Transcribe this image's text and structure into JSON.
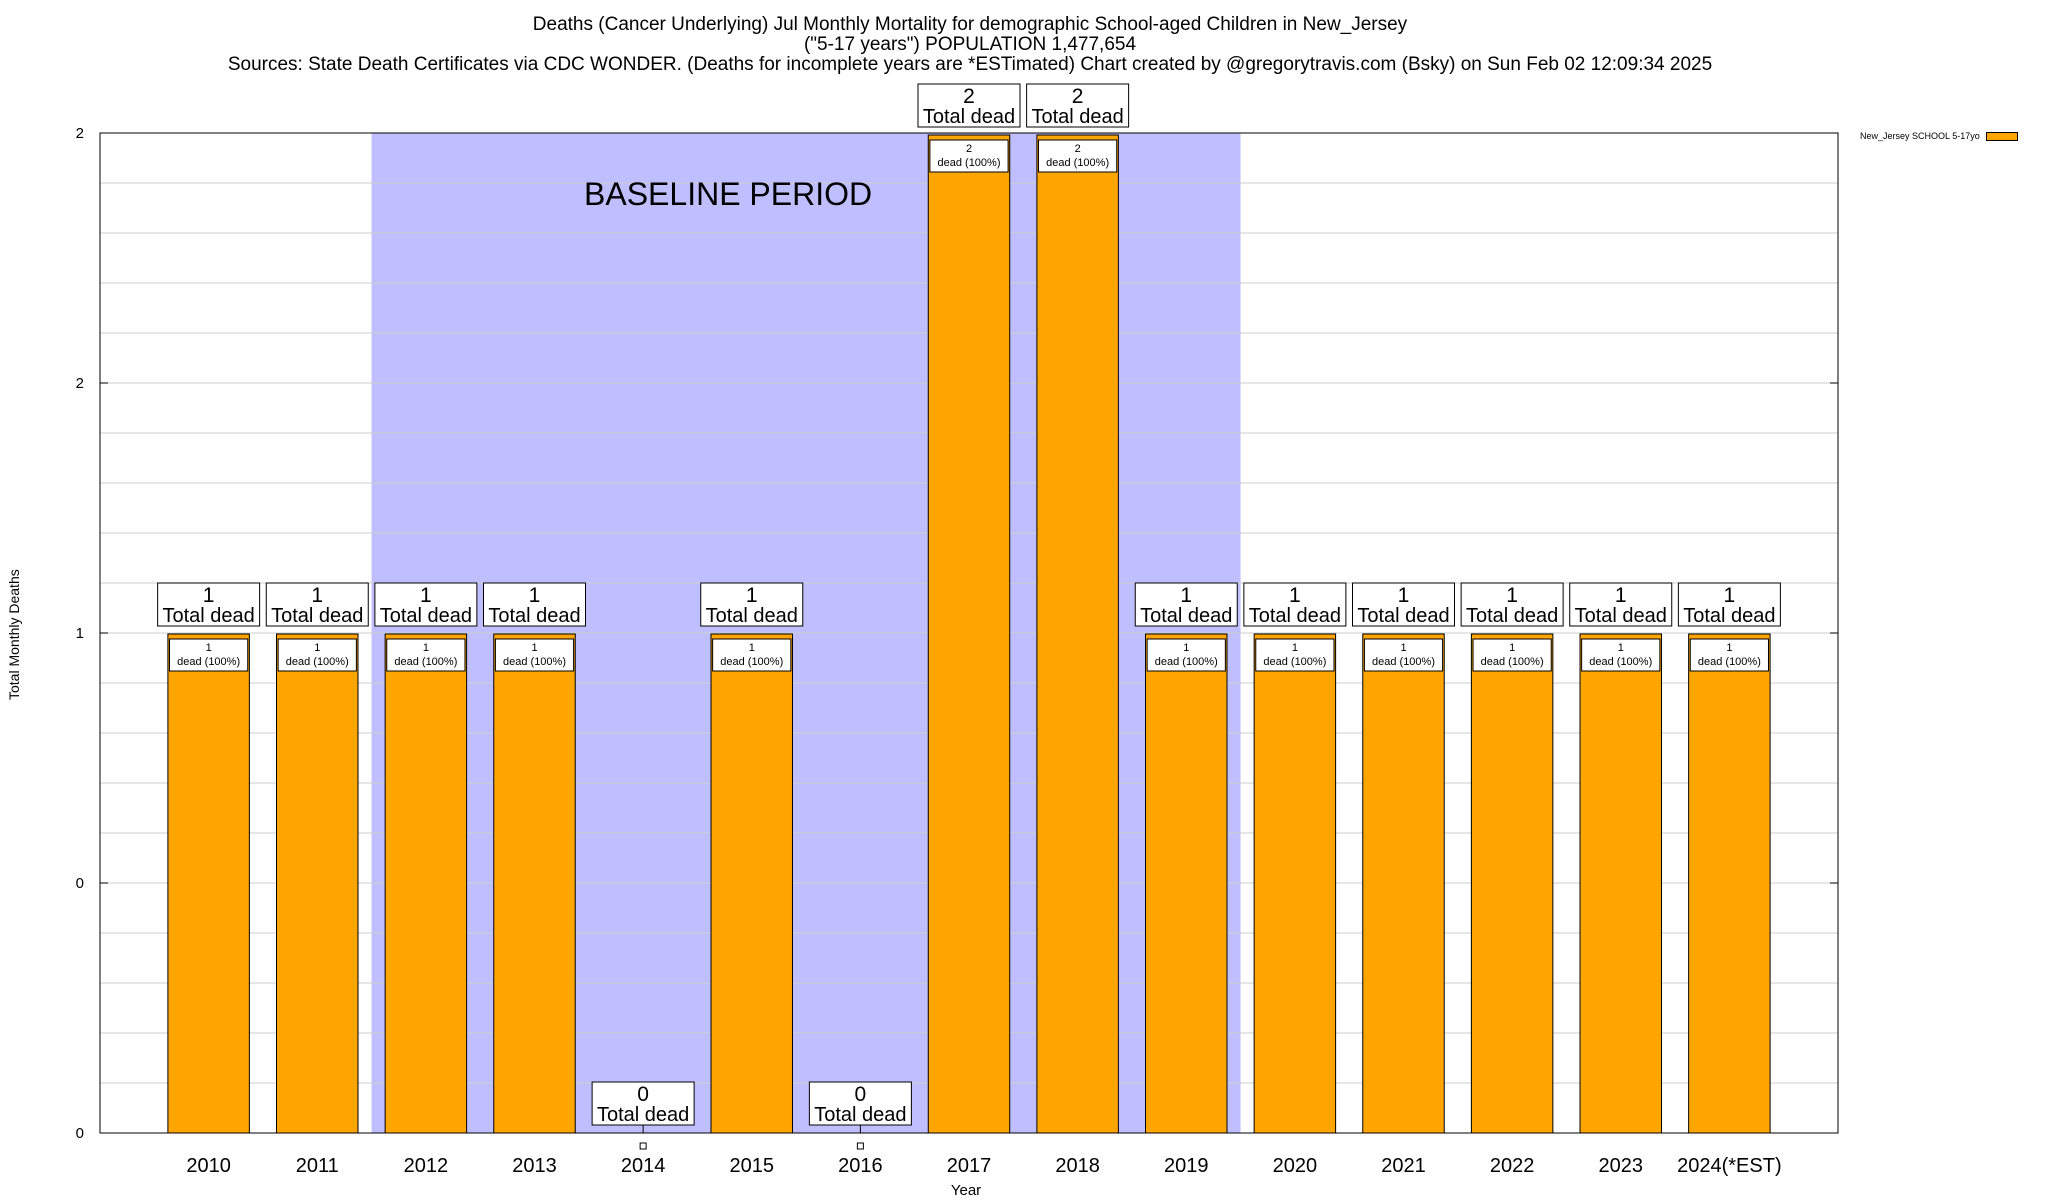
{
  "title": {
    "line1": "Deaths (Cancer Underlying) Jul Monthly Mortality for demographic School-aged Children in New_Jersey",
    "line2": "(\"5-17 years\") POPULATION 1,477,654",
    "line3": "Sources: State Death Certificates via CDC WONDER. (Deaths for incomplete years are *ESTimated)              Chart created by @gregorytravis.com (Bsky) on Sun Feb 02 12:09:34 2025"
  },
  "chart_data": {
    "type": "bar",
    "categories": [
      "2010",
      "2011",
      "2012",
      "2013",
      "2014",
      "2015",
      "2016",
      "2017",
      "2018",
      "2019",
      "2020",
      "2021",
      "2022",
      "2023",
      "2024(*EST)"
    ],
    "series": [
      {
        "name": "New_Jersey SCHOOL 5-17yo",
        "values": [
          1,
          1,
          1,
          1,
          0,
          1,
          0,
          2,
          2,
          1,
          1,
          1,
          1,
          1,
          1
        ]
      }
    ],
    "total_label_suffix": "Total dead",
    "segment_label_suffix": "dead (100%)",
    "annotations": [
      {
        "text": "BASELINE PERIOD",
        "x_range": [
          "2012",
          "2019"
        ]
      }
    ],
    "xlabel": "Year",
    "ylabel": "Total Monthly Deaths",
    "y_tick_labels": [
      "0",
      "0",
      "1",
      "2",
      "2"
    ],
    "ylim": [
      0,
      2
    ],
    "grid": true,
    "legend_position": "top-right",
    "colors": {
      "bar": "#FFA500",
      "baseline_shade": "#BFBFFF",
      "grid": "#cccccc"
    }
  }
}
